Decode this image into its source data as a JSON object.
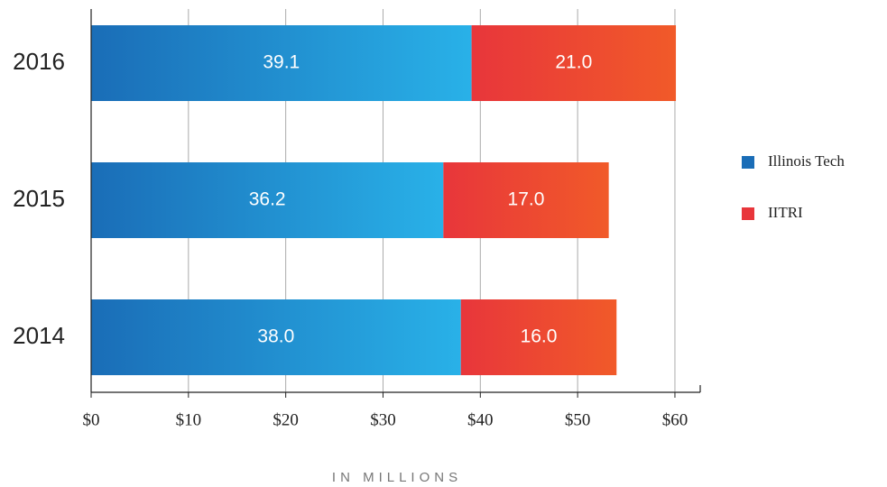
{
  "chart_data": {
    "type": "stacked-barh",
    "categories": [
      "2016",
      "2015",
      "2014"
    ],
    "series": [
      {
        "name": "Illinois Tech",
        "gradient": [
          "#1a6db7",
          "#29b1e8"
        ],
        "values": [
          39.1,
          36.2,
          38.0
        ],
        "value_labels": [
          "39.1",
          "36.2",
          "38.0"
        ]
      },
      {
        "name": "IITRI",
        "gradient": [
          "#e8363b",
          "#f15a29"
        ],
        "values": [
          21.0,
          17.0,
          16.0
        ],
        "value_labels": [
          "21.0",
          "17.0",
          "16.0"
        ]
      }
    ],
    "xlim": [
      0,
      62.6
    ],
    "xticks": [
      {
        "value": 0,
        "label": "$0"
      },
      {
        "value": 10,
        "label": "$10"
      },
      {
        "value": 20,
        "label": "$20"
      },
      {
        "value": 30,
        "label": "$30"
      },
      {
        "value": 40,
        "label": "$40"
      },
      {
        "value": 50,
        "label": "$50"
      },
      {
        "value": 60,
        "label": "$60"
      }
    ],
    "xlabel": "IN MILLIONS",
    "grid": true,
    "legend": "right"
  }
}
